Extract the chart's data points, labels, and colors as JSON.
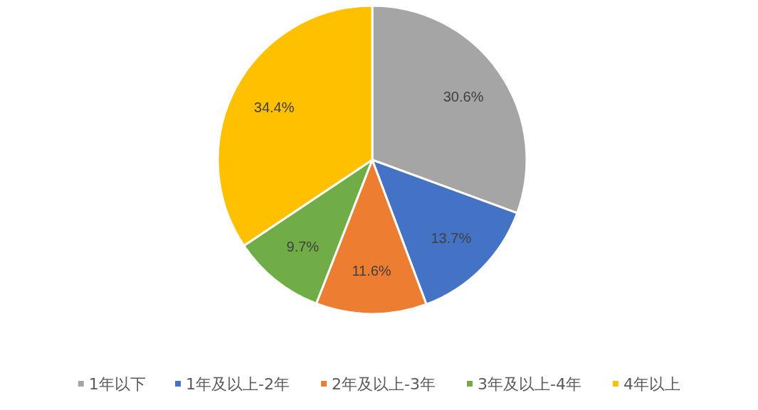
{
  "chart_data": {
    "type": "pie",
    "categories": [
      "1年以下",
      "1年及以上-2年",
      "2年及以上-3年",
      "3年及以上-4年",
      "4年以上"
    ],
    "values": [
      30.6,
      13.7,
      11.6,
      9.7,
      34.4
    ],
    "value_labels": [
      "30.6%",
      "13.7%",
      "11.6%",
      "9.7%",
      "34.4%"
    ],
    "colors": [
      "#a5a5a5",
      "#4472c4",
      "#ed7d31",
      "#70ad47",
      "#ffc000"
    ],
    "legend": "bottom"
  }
}
